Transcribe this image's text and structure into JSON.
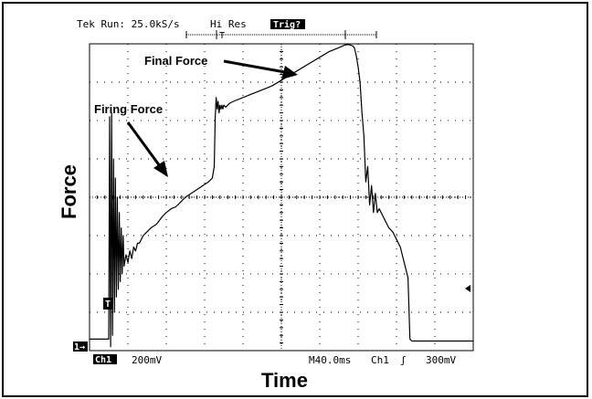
{
  "chart_data": {
    "type": "line",
    "title": "",
    "xlabel": "Time",
    "ylabel": "Force",
    "xlim": [
      0,
      400
    ],
    "grid": true,
    "header": {
      "status": "Tek Run: 25.0kS/s",
      "mode": "Hi Res",
      "trig": "Trig?"
    },
    "footer": {
      "channel": "Ch1",
      "volts_div": "200mV",
      "timebase": "M40.0ms",
      "trigger_source": "Ch1",
      "trigger_slope": "ʃ",
      "trigger_level": "300mV"
    },
    "markers": {
      "channel_ground": "1→",
      "trigger_point": "T"
    },
    "annotations": [
      {
        "text": "Firing Force"
      },
      {
        "text": "Final Force"
      }
    ],
    "series": [
      {
        "x": [
          0,
          18,
          20,
          21,
          22,
          23,
          24,
          25,
          26,
          27,
          28,
          29,
          30,
          31,
          32,
          33,
          34,
          35,
          36,
          38,
          40,
          42,
          44,
          46,
          48,
          50,
          52,
          54,
          56,
          58,
          60,
          64,
          70,
          76,
          80,
          85,
          90,
          96,
          100,
          106,
          112,
          118,
          124,
          128,
          130,
          131,
          132,
          133,
          134,
          135,
          136,
          137,
          138,
          139,
          140,
          142,
          144,
          146,
          150,
          160,
          170,
          180,
          190,
          200,
          210,
          220,
          230,
          240,
          250,
          260,
          266,
          270,
          274,
          276,
          278,
          280,
          282,
          284,
          286,
          288,
          290,
          292,
          294,
          296,
          298,
          300,
          302,
          304,
          306,
          308,
          310,
          312,
          314,
          316,
          318,
          320,
          322,
          324,
          326,
          328,
          330,
          332,
          334,
          336,
          338,
          340,
          342,
          344,
          346,
          348,
          350,
          400
        ],
        "values": [
          0.3,
          0.3,
          0.3,
          6.1,
          0.1,
          6.2,
          0.4,
          5.0,
          1.0,
          4.5,
          1.4,
          4.0,
          1.6,
          3.6,
          1.8,
          3.2,
          2.0,
          3.0,
          2.2,
          2.5,
          2.3,
          2.6,
          2.4,
          2.7,
          2.6,
          2.8,
          2.8,
          2.9,
          3.0,
          3.05,
          3.1,
          3.2,
          3.3,
          3.5,
          3.6,
          3.7,
          3.75,
          3.9,
          4.0,
          4.1,
          4.2,
          4.3,
          4.4,
          4.5,
          4.8,
          6.1,
          6.6,
          6.3,
          6.5,
          6.2,
          6.4,
          6.3,
          6.4,
          6.3,
          6.4,
          6.35,
          6.4,
          6.45,
          6.5,
          6.6,
          6.7,
          6.8,
          6.9,
          7.05,
          7.2,
          7.35,
          7.5,
          7.65,
          7.8,
          7.9,
          7.97,
          7.98,
          7.95,
          7.9,
          7.7,
          7.4,
          7.0,
          6.2,
          5.6,
          4.4,
          4.8,
          3.8,
          4.3,
          3.6,
          4.1,
          3.6,
          3.7,
          3.6,
          3.5,
          3.4,
          3.3,
          3.2,
          3.15,
          3.1,
          3.0,
          2.9,
          2.8,
          2.7,
          2.5,
          2.3,
          2.1,
          1.9,
          0.3,
          0.25,
          0.25,
          0.25,
          0.25,
          0.25,
          0.25,
          0.25,
          0.25,
          0.25
        ]
      }
    ]
  }
}
